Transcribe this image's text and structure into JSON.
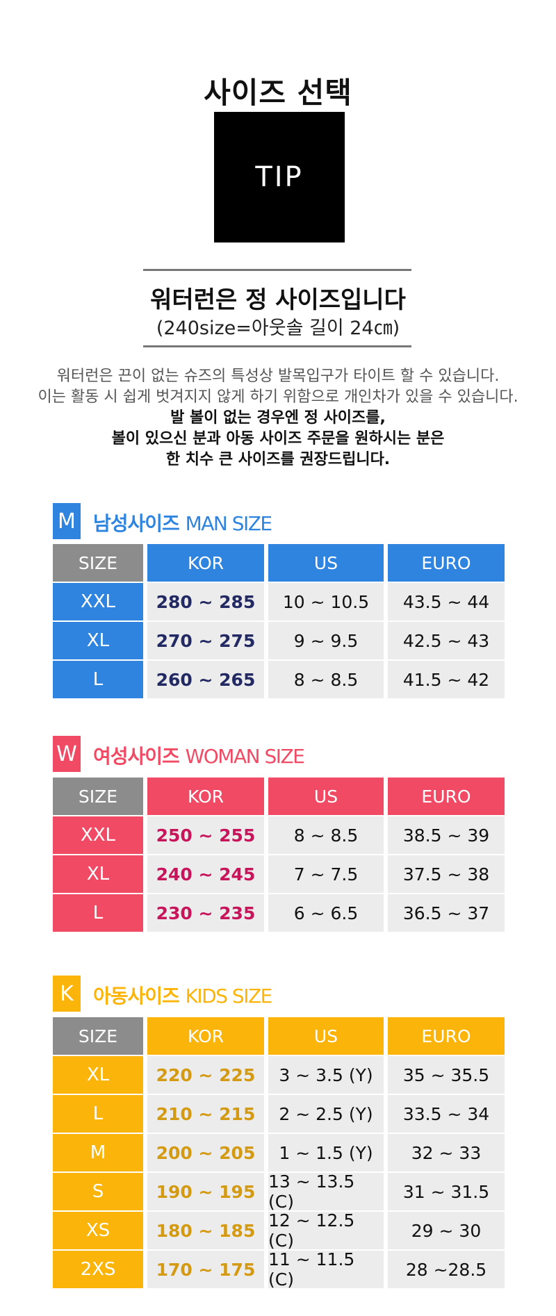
{
  "header": {
    "title": "사이즈 선택",
    "tip_label": "TIP"
  },
  "notice": {
    "heading": "워터런은 정 사이즈입니다",
    "subheading": "(240size=아웃솔 길이 24㎝)",
    "lines_gray": [
      "워터런은 끈이 없는 슈즈의 특성상 발목입구가 타이트 할 수 있습니다.",
      "이는 활동 시 쉽게 벗겨지지 않게 하기 위함으로 개인차가 있을 수 있습니다."
    ],
    "lines_bold": [
      "발 볼이 없는 경우엔 정 사이즈를,",
      "볼이 있으신 분과 아동 사이즈 주문을 원하시는 분은",
      "한 치수 큰 사이즈를 권장드립니다."
    ]
  },
  "colors": {
    "gray_header": "#8c8c8c",
    "man": "#2e84df",
    "woman": "#f04a64",
    "kids": "#fbb40a",
    "man_kor_text": "#232a63",
    "woman_kor_text": "#c8145a",
    "kids_kor_text": "#d39a12"
  },
  "sections": [
    {
      "key": "man",
      "badge": "M",
      "title_ko": "남성사이즈",
      "title_en": "MAN SIZE",
      "headers": [
        "SIZE",
        "KOR",
        "US",
        "EURO"
      ],
      "rows": [
        {
          "size": "XXL",
          "kor": "280 ~ 285",
          "us": "10 ~ 10.5",
          "euro": "43.5 ~ 44"
        },
        {
          "size": "XL",
          "kor": "270 ~ 275",
          "us": "9 ~ 9.5",
          "euro": "42.5 ~ 43"
        },
        {
          "size": "L",
          "kor": "260 ~ 265",
          "us": "8 ~ 8.5",
          "euro": "41.5 ~ 42"
        }
      ]
    },
    {
      "key": "woman",
      "badge": "W",
      "title_ko": "여성사이즈",
      "title_en": "WOMAN SIZE",
      "headers": [
        "SIZE",
        "KOR",
        "US",
        "EURO"
      ],
      "rows": [
        {
          "size": "XXL",
          "kor": "250 ~ 255",
          "us": "8 ~ 8.5",
          "euro": "38.5 ~ 39"
        },
        {
          "size": "XL",
          "kor": "240 ~ 245",
          "us": "7 ~ 7.5",
          "euro": "37.5 ~ 38"
        },
        {
          "size": "L",
          "kor": "230 ~ 235",
          "us": "6 ~ 6.5",
          "euro": "36.5 ~ 37"
        }
      ]
    },
    {
      "key": "kids",
      "badge": "K",
      "title_ko": "아동사이즈",
      "title_en": "KIDS SIZE",
      "headers": [
        "SIZE",
        "KOR",
        "US",
        "EURO"
      ],
      "rows": [
        {
          "size": "XL",
          "kor": "220 ~ 225",
          "us": "3 ~ 3.5 (Y)",
          "euro": "35 ~ 35.5"
        },
        {
          "size": "L",
          "kor": "210 ~ 215",
          "us": "2 ~ 2.5 (Y)",
          "euro": "33.5 ~ 34"
        },
        {
          "size": "M",
          "kor": "200 ~ 205",
          "us": "1 ~ 1.5 (Y)",
          "euro": "32 ~ 33"
        },
        {
          "size": "S",
          "kor": "190 ~ 195",
          "us": "13 ~ 13.5 (C)",
          "euro": "31 ~ 31.5"
        },
        {
          "size": "XS",
          "kor": "180 ~ 185",
          "us": "12 ~ 12.5 (C)",
          "euro": "29 ~ 30"
        },
        {
          "size": "2XS",
          "kor": "170 ~ 175",
          "us": "11 ~ 11.5 (C)",
          "euro": "28 ~28.5"
        }
      ]
    }
  ]
}
